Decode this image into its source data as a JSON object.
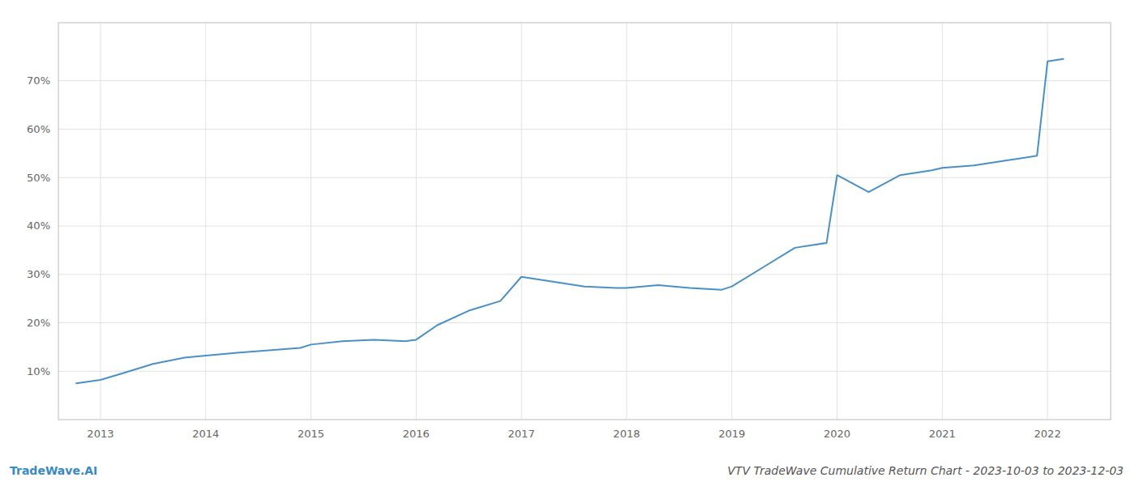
{
  "chart_data": {
    "type": "line",
    "title": "VTV TradeWave Cumulative Return Chart - 2023-10-03 to 2023-12-03",
    "annotations": [
      {
        "text": "TradeWave.AI",
        "color": "#3a8abf"
      }
    ],
    "color": "#4a90c4",
    "grid": true,
    "x": [
      2012.77,
      2013.0,
      2013.2,
      2013.5,
      2013.8,
      2014.0,
      2014.3,
      2014.6,
      2014.9,
      2015.0,
      2015.3,
      2015.6,
      2015.9,
      2016.0,
      2016.2,
      2016.5,
      2016.8,
      2017.0,
      2017.3,
      2017.6,
      2017.9,
      2018.0,
      2018.3,
      2018.6,
      2018.9,
      2019.0,
      2019.3,
      2019.6,
      2019.9,
      2020.0,
      2020.3,
      2020.6,
      2020.9,
      2021.0,
      2021.3,
      2021.6,
      2021.9,
      2022.0,
      2022.15
    ],
    "values": [
      7.5,
      8.2,
      9.5,
      11.5,
      12.8,
      13.2,
      13.8,
      14.3,
      14.8,
      15.5,
      16.2,
      16.5,
      16.2,
      16.5,
      19.5,
      22.5,
      24.5,
      29.5,
      28.5,
      27.5,
      27.2,
      27.2,
      27.8,
      27.2,
      26.8,
      27.5,
      31.5,
      35.5,
      36.5,
      50.5,
      47.0,
      50.5,
      51.5,
      52.0,
      52.5,
      53.5,
      54.5,
      74.0,
      74.5
    ],
    "xlim": [
      2012.6,
      2022.6
    ],
    "xticks": [
      2013,
      2014,
      2015,
      2016,
      2017,
      2018,
      2019,
      2020,
      2021,
      2022
    ],
    "ylim": [
      0,
      82
    ],
    "yticks": [
      {
        "value": 10,
        "label": "10%"
      },
      {
        "value": 20,
        "label": "20%"
      },
      {
        "value": 30,
        "label": "30%"
      },
      {
        "value": 40,
        "label": "40%"
      },
      {
        "value": 50,
        "label": "50%"
      },
      {
        "value": 60,
        "label": "60%"
      },
      {
        "value": 70,
        "label": "70%"
      }
    ]
  }
}
